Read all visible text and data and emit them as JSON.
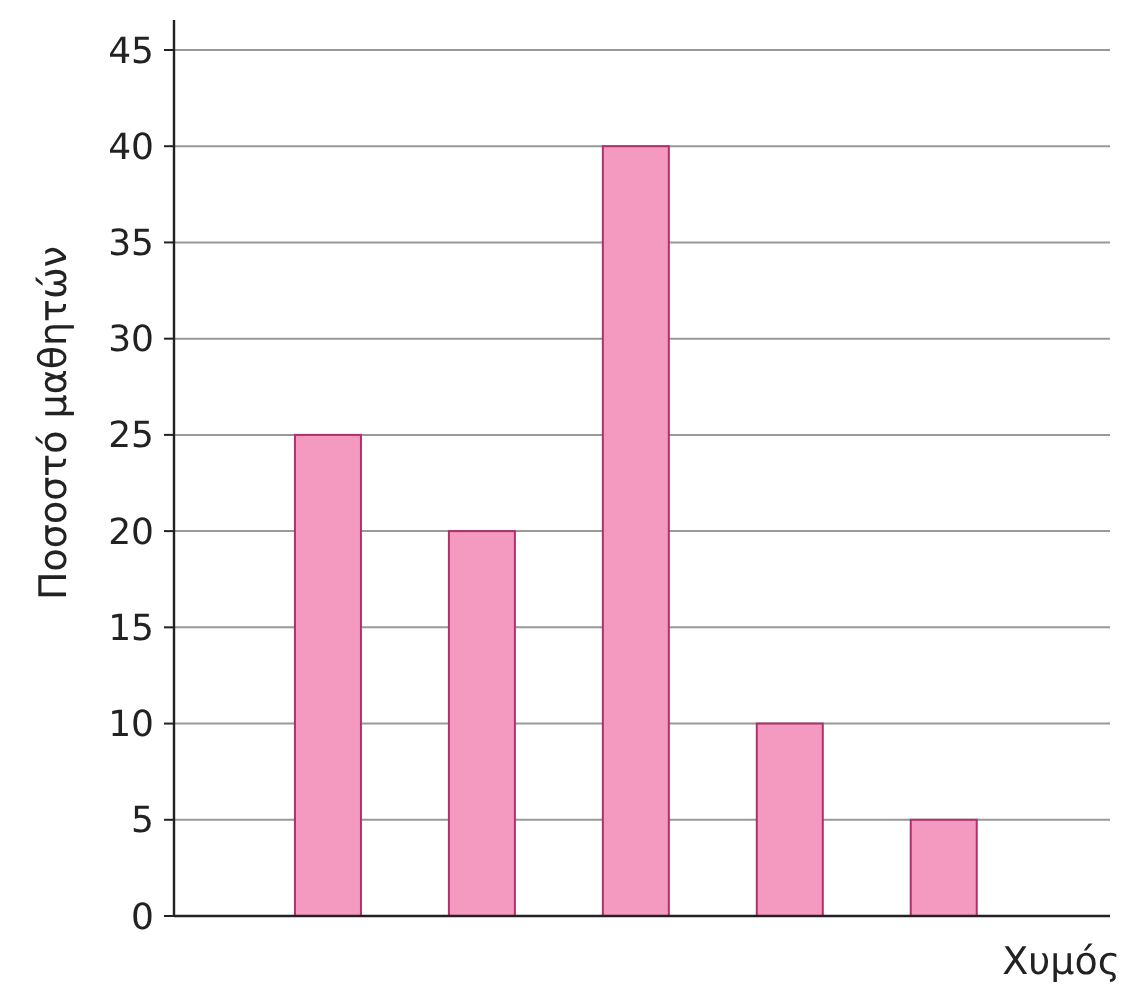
{
  "chart_data": {
    "type": "bar",
    "xlabel": "Χυμός",
    "ylabel": "Ποσοστό μαθητών",
    "categories": [
      null,
      null,
      null,
      null,
      null
    ],
    "values": [
      25,
      20,
      40,
      10,
      5
    ],
    "color": "#f49ac1",
    "ylim": [
      0,
      45
    ],
    "yticks": [
      0,
      5,
      10,
      15,
      20,
      25,
      30,
      35,
      40,
      45
    ],
    "grid": "y"
  }
}
